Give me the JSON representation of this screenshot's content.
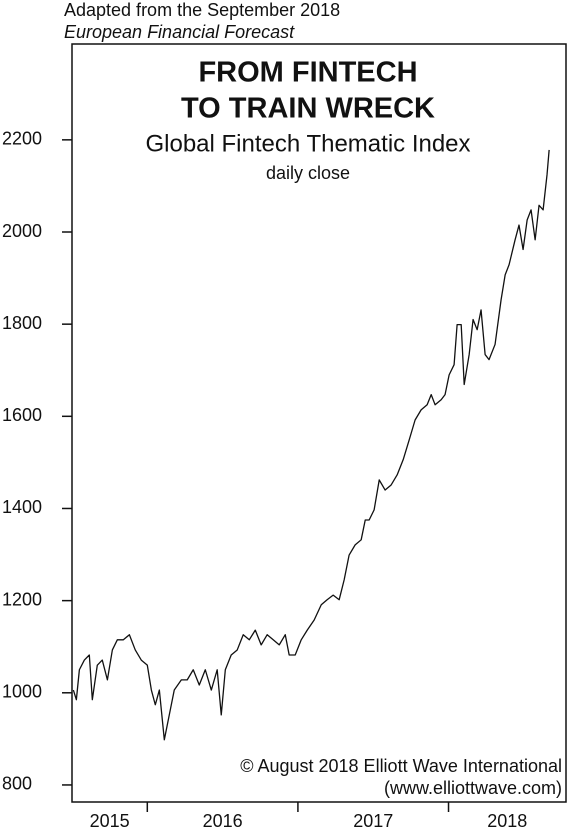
{
  "chart_data": {
    "type": "line",
    "source": [
      "Adapted from the September 2018",
      "European Financial Forecast"
    ],
    "title_lines": [
      "FROM FINTECH",
      "TO TRAIN WRECK"
    ],
    "subtitles": [
      "Global Fintech Thematic Index",
      "daily close"
    ],
    "credit": [
      "© August 2018 Elliott Wave International",
      "(www.elliottwave.com)"
    ],
    "x": [
      2015.509,
      2015.529,
      2015.549,
      2015.582,
      2015.615,
      2015.635,
      2015.668,
      2015.701,
      2015.735,
      2015.768,
      2015.801,
      2015.841,
      2015.881,
      2015.92,
      2015.96,
      2016.0,
      2016.027,
      2016.053,
      2016.08,
      2016.113,
      2016.146,
      2016.179,
      2016.226,
      2016.265,
      2016.305,
      2016.345,
      2016.385,
      2016.425,
      2016.464,
      2016.491,
      2016.518,
      2016.557,
      2016.597,
      2016.637,
      2016.677,
      2016.717,
      2016.756,
      2016.796,
      2016.836,
      2016.876,
      2016.916,
      2016.942,
      2016.982,
      2017.022,
      2017.062,
      2017.108,
      2017.155,
      2017.194,
      2017.234,
      2017.274,
      2017.307,
      2017.34,
      2017.38,
      2017.42,
      2017.447,
      2017.473,
      2017.506,
      2017.54,
      2017.579,
      2017.619,
      2017.659,
      2017.699,
      2017.739,
      2017.778,
      2017.818,
      2017.858,
      2017.885,
      2017.911,
      2017.951,
      2017.977,
      2018.004,
      2018.037,
      2018.057,
      2018.084,
      2018.104,
      2018.137,
      2018.163,
      2018.19,
      2018.216,
      2018.243,
      2018.269,
      2018.309,
      2018.349,
      2018.376,
      2018.402,
      2018.442,
      2018.468,
      2018.495,
      2018.522,
      2018.548,
      2018.575,
      2018.601,
      2018.628,
      2018.654,
      2018.668
    ],
    "series": [
      {
        "color": "#111111",
        "values": [
          1006,
          985,
          1050,
          1071,
          1082,
          985,
          1060,
          1071,
          1028,
          1093,
          1115,
          1115,
          1126,
          1093,
          1071,
          1060,
          1006,
          974,
          1006,
          898,
          952,
          1006,
          1028,
          1028,
          1050,
          1017,
          1050,
          1006,
          1050,
          952,
          1050,
          1082,
          1093,
          1126,
          1115,
          1136,
          1104,
          1126,
          1115,
          1104,
          1126,
          1082,
          1082,
          1115,
          1136,
          1158,
          1191,
          1202,
          1212,
          1202,
          1245,
          1299,
          1321,
          1332,
          1375,
          1375,
          1397,
          1462,
          1440,
          1451,
          1473,
          1506,
          1549,
          1592,
          1614,
          1625,
          1647,
          1625,
          1636,
          1647,
          1690,
          1712,
          1799,
          1799,
          1669,
          1734,
          1810,
          1788,
          1831,
          1734,
          1723,
          1756,
          1853,
          1907,
          1929,
          1983,
          2015,
          1962,
          2026,
          2048,
          1983,
          2058,
          2048,
          2124,
          2178
        ]
      }
    ],
    "xlim": [
      2015.5,
      2018.78
    ],
    "xticks": [
      2016,
      2017,
      2018
    ],
    "x_labels": [
      2015,
      2016,
      2017,
      2018
    ],
    "ylim": [
      763,
      2408
    ],
    "yticks": [
      800,
      1000,
      1200,
      1400,
      1600,
      1800,
      2000,
      2200
    ]
  }
}
